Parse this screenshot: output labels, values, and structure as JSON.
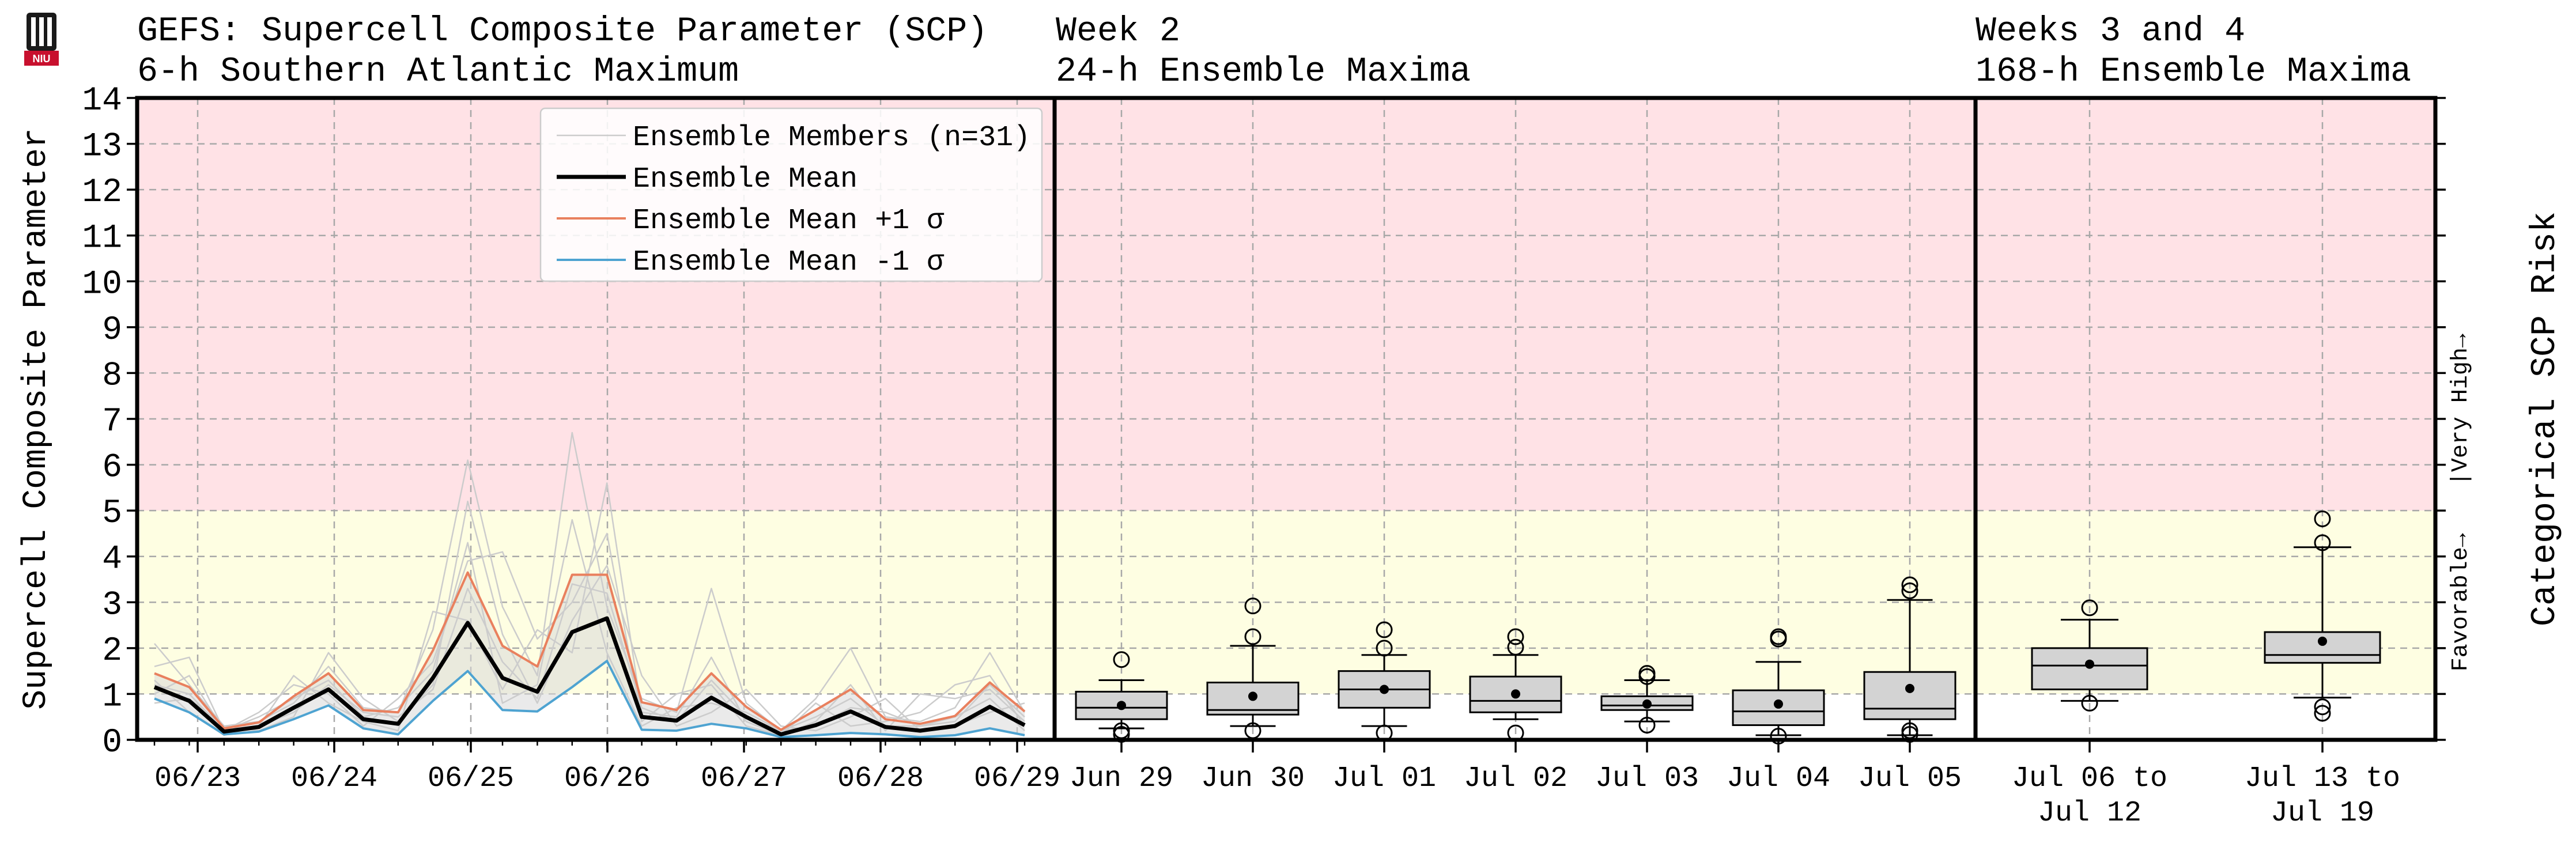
{
  "header": {
    "logo_text": "NIU",
    "panel1_title_line1": "GEFS: Supercell Composite Parameter (SCP)",
    "panel1_title_line2": "6-h Southern Atlantic Maximum",
    "panel2_title_line1": "Week 2",
    "panel2_title_line2": "24-h Ensemble Maxima",
    "panel3_title_line1": "Weeks 3 and 4",
    "panel3_title_line2": "168-h Ensemble Maxima"
  },
  "chart_data": [
    {
      "type": "line",
      "title": "GEFS: Supercell Composite Parameter (SCP)",
      "subtitle": "6-h Southern Atlantic Maximum",
      "ylabel": "Supercell Composite Parameter",
      "ylim": [
        0,
        14
      ],
      "yticks": [
        0,
        1,
        2,
        3,
        4,
        5,
        6,
        7,
        8,
        9,
        10,
        11,
        12,
        13,
        14
      ],
      "xtick_labels": [
        "06/23",
        "06/24",
        "06/25",
        "06/26",
        "06/27",
        "06/28",
        "06/29"
      ],
      "grid": true,
      "legend_position": "top-right",
      "legend": [
        "Ensemble Members (n=31)",
        "Ensemble Mean",
        "Ensemble Mean +1 σ",
        "Ensemble Mean -1 σ"
      ],
      "colors": {
        "members": "#cccccc",
        "mean": "#000000",
        "plus_sigma": "#e9805e",
        "minus_sigma": "#4ea3d1",
        "high_zone": "#ffe2e6",
        "favorable_zone": "#fefee2"
      },
      "series": [
        {
          "name": "Ensemble Mean",
          "values": [
            1.15,
            0.85,
            0.18,
            0.28,
            0.7,
            1.1,
            0.45,
            0.35,
            1.35,
            2.55,
            1.35,
            1.05,
            2.35,
            2.65,
            0.5,
            0.42,
            0.92,
            0.5,
            0.12,
            0.32,
            0.62,
            0.28,
            0.2,
            0.3,
            0.72,
            0.32
          ]
        },
        {
          "name": "Ensemble Mean +1 σ",
          "values": [
            1.45,
            1.15,
            0.25,
            0.38,
            0.95,
            1.45,
            0.65,
            0.6,
            1.95,
            3.65,
            2.05,
            1.6,
            3.6,
            3.6,
            0.82,
            0.65,
            1.45,
            0.72,
            0.22,
            0.65,
            1.1,
            0.45,
            0.35,
            0.52,
            1.25,
            0.62
          ]
        },
        {
          "name": "Ensemble Mean -1 σ",
          "values": [
            0.9,
            0.6,
            0.12,
            0.18,
            0.45,
            0.75,
            0.25,
            0.12,
            0.85,
            1.5,
            0.65,
            0.62,
            1.15,
            1.72,
            0.22,
            0.2,
            0.35,
            0.25,
            0.06,
            0.1,
            0.15,
            0.12,
            0.06,
            0.1,
            0.25,
            0.1
          ]
        },
        {
          "name": "member-a",
          "values": [
            2.1,
            1.2,
            0.3,
            0.4,
            0.8,
            1.6,
            0.7,
            0.6,
            2.4,
            6.1,
            2.9,
            1.4,
            6.7,
            2.9,
            0.9,
            0.6,
            3.3,
            0.8,
            0.2,
            0.9,
            2.0,
            0.5,
            0.4,
            0.7,
            1.9,
            0.6
          ]
        },
        {
          "name": "member-b",
          "values": [
            1.6,
            1.8,
            0.2,
            0.6,
            1.2,
            1.0,
            0.3,
            0.9,
            1.7,
            3.9,
            4.1,
            2.2,
            3.0,
            4.5,
            0.4,
            1.0,
            1.2,
            0.3,
            0.1,
            0.4,
            1.2,
            0.2,
            1.0,
            0.9,
            1.1,
            0.4
          ]
        },
        {
          "name": "member-c",
          "values": [
            0.8,
            0.9,
            0.3,
            0.2,
            0.5,
            1.9,
            0.9,
            0.4,
            1.2,
            5.2,
            2.3,
            0.8,
            2.6,
            3.8,
            1.4,
            0.3,
            0.6,
            1.1,
            0.3,
            0.2,
            0.5,
            0.9,
            0.2,
            0.3,
            0.6,
            0.8
          ]
        },
        {
          "name": "member-d",
          "values": [
            1.3,
            0.6,
            0.1,
            0.3,
            1.4,
            0.8,
            0.4,
            0.2,
            2.8,
            2.6,
            1.1,
            2.4,
            1.9,
            5.6,
            0.6,
            0.5,
            1.8,
            0.4,
            0.1,
            0.8,
            0.3,
            0.4,
            0.6,
            1.2,
            1.4,
            0.3
          ]
        },
        {
          "name": "member-e",
          "values": [
            1.0,
            1.4,
            0.2,
            0.5,
            0.9,
            1.3,
            0.5,
            0.7,
            1.5,
            4.3,
            0.8,
            1.2,
            4.8,
            1.9,
            0.3,
            0.7,
            0.8,
            0.6,
            0.2,
            0.5,
            0.9,
            0.3,
            0.3,
            0.5,
            0.9,
            0.2
          ]
        },
        {
          "name": "member-f",
          "values": [
            1.2,
            1.0,
            0.2,
            0.3,
            0.6,
            1.2,
            0.6,
            0.5,
            1.1,
            3.3,
            1.7,
            0.9,
            3.4,
            3.2,
            0.7,
            0.4,
            1.3,
            0.5,
            0.2,
            0.3,
            0.7,
            0.6,
            0.3,
            0.4,
            1.2,
            0.5
          ]
        }
      ]
    },
    {
      "type": "box",
      "title": "Week 2",
      "subtitle": "24-h Ensemble Maxima",
      "ylim": [
        0,
        14
      ],
      "categories": [
        "Jun 29",
        "Jun 30",
        "Jul 01",
        "Jul 02",
        "Jul 03",
        "Jul 04",
        "Jul 05"
      ],
      "boxes": [
        {
          "whisker_low": 0.25,
          "q1": 0.45,
          "median": 0.7,
          "q3": 1.05,
          "whisker_high": 1.3,
          "mean": 0.75,
          "outliers": [
            1.75,
            0.2,
            0.12
          ]
        },
        {
          "whisker_low": 0.3,
          "q1": 0.55,
          "median": 0.65,
          "q3": 1.25,
          "whisker_high": 2.05,
          "mean": 0.95,
          "outliers": [
            2.92,
            2.25,
            0.2
          ]
        },
        {
          "whisker_low": 0.3,
          "q1": 0.7,
          "median": 1.1,
          "q3": 1.5,
          "whisker_high": 1.85,
          "mean": 1.1,
          "outliers": [
            2.4,
            2.0,
            0.15
          ]
        },
        {
          "whisker_low": 0.45,
          "q1": 0.6,
          "median": 0.85,
          "q3": 1.38,
          "whisker_high": 1.85,
          "mean": 1.0,
          "outliers": [
            2.25,
            2.02,
            0.15
          ]
        },
        {
          "whisker_low": 0.4,
          "q1": 0.65,
          "median": 0.75,
          "q3": 0.95,
          "whisker_high": 1.3,
          "mean": 0.78,
          "outliers": [
            1.45,
            1.38,
            0.32
          ]
        },
        {
          "whisker_low": 0.1,
          "q1": 0.32,
          "median": 0.62,
          "q3": 1.08,
          "whisker_high": 1.7,
          "mean": 0.78,
          "outliers": [
            2.25,
            2.2,
            0.08
          ]
        },
        {
          "whisker_low": 0.1,
          "q1": 0.45,
          "median": 0.68,
          "q3": 1.48,
          "whisker_high": 3.05,
          "mean": 1.12,
          "outliers": [
            3.38,
            3.25,
            0.2,
            0.12
          ]
        }
      ]
    },
    {
      "type": "box",
      "title": "Weeks 3 and 4",
      "subtitle": "168-h Ensemble Maxima",
      "ylim": [
        0,
        14
      ],
      "ylabel_right": "Categorical SCP Risk",
      "right_ticks": [
        "Favorable→",
        "|Very High→"
      ],
      "categories": [
        "Jul 06 to\nJul 12",
        "Jul 13 to\nJul 19"
      ],
      "boxes": [
        {
          "whisker_low": 0.85,
          "q1": 1.1,
          "median": 1.62,
          "q3": 2.0,
          "whisker_high": 2.62,
          "mean": 1.65,
          "outliers": [
            2.88,
            0.8
          ]
        },
        {
          "whisker_low": 0.92,
          "q1": 1.68,
          "median": 1.85,
          "q3": 2.35,
          "whisker_high": 4.2,
          "mean": 2.15,
          "outliers": [
            4.82,
            4.3,
            0.72,
            0.58
          ]
        }
      ]
    }
  ]
}
